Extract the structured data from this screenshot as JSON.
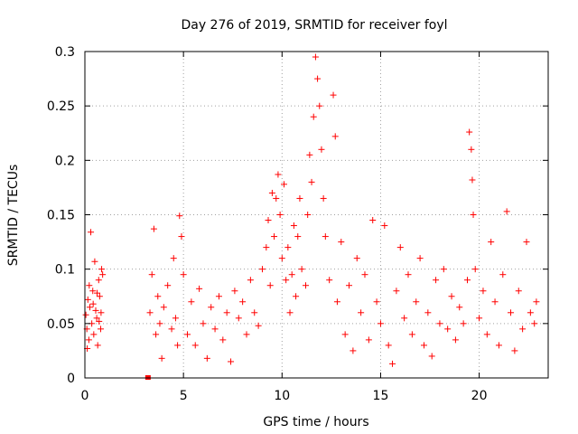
{
  "chart_data": {
    "type": "scatter",
    "title": "Day 276 of 2019, SRMTID for receiver foyl",
    "xlabel": "GPS time / hours",
    "ylabel": "SRMTID / TECUs",
    "xlim": [
      0,
      23.5
    ],
    "ylim": [
      0,
      0.3
    ],
    "xticks": [
      0,
      5,
      10,
      15,
      20
    ],
    "yticks": [
      0,
      0.05,
      0.1,
      0.15,
      0.2,
      0.25,
      0.3
    ],
    "xtick_labels": [
      "0",
      "5",
      "10",
      "15",
      "20"
    ],
    "ytick_labels": [
      "0",
      "0.05",
      "0.1",
      "0.15",
      "0.2",
      "0.25",
      "0.3"
    ],
    "grid": true,
    "marker": "+",
    "color": "#ff0000",
    "series": [
      {
        "name": "SRMTID",
        "description": "Dense scatter of SRMTID values; gap from about 0.9 to 3.1 hours. Points listed are representative samples read from the plot.",
        "points": [
          [
            0.05,
            0.058
          ],
          [
            0.1,
            0.045
          ],
          [
            0.15,
            0.072
          ],
          [
            0.2,
            0.035
          ],
          [
            0.25,
            0.065
          ],
          [
            0.3,
            0.134
          ],
          [
            0.35,
            0.05
          ],
          [
            0.4,
            0.08
          ],
          [
            0.45,
            0.04
          ],
          [
            0.5,
            0.107
          ],
          [
            0.55,
            0.062
          ],
          [
            0.6,
            0.055
          ],
          [
            0.65,
            0.03
          ],
          [
            0.7,
            0.09
          ],
          [
            0.75,
            0.075
          ],
          [
            0.8,
            0.045
          ],
          [
            0.85,
            0.1
          ],
          [
            0.9,
            0.095
          ],
          [
            0.12,
            0.027
          ],
          [
            0.22,
            0.085
          ],
          [
            0.42,
            0.068
          ],
          [
            0.62,
            0.078
          ],
          [
            0.72,
            0.052
          ],
          [
            0.82,
            0.06
          ],
          [
            3.2,
            0.0
          ],
          [
            3.3,
            0.06
          ],
          [
            3.4,
            0.095
          ],
          [
            3.5,
            0.137
          ],
          [
            3.6,
            0.04
          ],
          [
            3.7,
            0.075
          ],
          [
            3.8,
            0.05
          ],
          [
            3.9,
            0.018
          ],
          [
            4.0,
            0.065
          ],
          [
            4.2,
            0.085
          ],
          [
            4.4,
            0.045
          ],
          [
            4.5,
            0.11
          ],
          [
            4.6,
            0.055
          ],
          [
            4.7,
            0.03
          ],
          [
            4.8,
            0.149
          ],
          [
            4.9,
            0.13
          ],
          [
            5.0,
            0.095
          ],
          [
            5.2,
            0.04
          ],
          [
            5.4,
            0.07
          ],
          [
            5.6,
            0.03
          ],
          [
            5.8,
            0.082
          ],
          [
            6.0,
            0.05
          ],
          [
            6.2,
            0.018
          ],
          [
            6.4,
            0.065
          ],
          [
            6.6,
            0.045
          ],
          [
            6.8,
            0.075
          ],
          [
            7.0,
            0.035
          ],
          [
            7.2,
            0.06
          ],
          [
            7.4,
            0.015
          ],
          [
            7.6,
            0.08
          ],
          [
            7.8,
            0.055
          ],
          [
            8.0,
            0.07
          ],
          [
            8.2,
            0.04
          ],
          [
            8.4,
            0.09
          ],
          [
            8.6,
            0.06
          ],
          [
            8.8,
            0.048
          ],
          [
            9.0,
            0.1
          ],
          [
            9.2,
            0.12
          ],
          [
            9.3,
            0.145
          ],
          [
            9.4,
            0.085
          ],
          [
            9.5,
            0.17
          ],
          [
            9.6,
            0.13
          ],
          [
            9.7,
            0.165
          ],
          [
            9.8,
            0.187
          ],
          [
            9.9,
            0.15
          ],
          [
            10.0,
            0.11
          ],
          [
            10.1,
            0.178
          ],
          [
            10.2,
            0.09
          ],
          [
            10.3,
            0.12
          ],
          [
            10.4,
            0.06
          ],
          [
            10.5,
            0.095
          ],
          [
            10.6,
            0.14
          ],
          [
            10.7,
            0.075
          ],
          [
            10.8,
            0.13
          ],
          [
            10.9,
            0.165
          ],
          [
            11.0,
            0.1
          ],
          [
            11.2,
            0.085
          ],
          [
            11.3,
            0.15
          ],
          [
            11.4,
            0.205
          ],
          [
            11.5,
            0.18
          ],
          [
            11.6,
            0.24
          ],
          [
            11.7,
            0.295
          ],
          [
            11.8,
            0.275
          ],
          [
            11.9,
            0.25
          ],
          [
            12.0,
            0.21
          ],
          [
            12.1,
            0.165
          ],
          [
            12.2,
            0.13
          ],
          [
            12.4,
            0.09
          ],
          [
            12.6,
            0.26
          ],
          [
            12.7,
            0.222
          ],
          [
            12.8,
            0.07
          ],
          [
            13.0,
            0.125
          ],
          [
            13.2,
            0.04
          ],
          [
            13.4,
            0.085
          ],
          [
            13.6,
            0.025
          ],
          [
            13.8,
            0.11
          ],
          [
            14.0,
            0.06
          ],
          [
            14.2,
            0.095
          ],
          [
            14.4,
            0.035
          ],
          [
            14.6,
            0.145
          ],
          [
            14.8,
            0.07
          ],
          [
            15.0,
            0.05
          ],
          [
            15.2,
            0.14
          ],
          [
            15.4,
            0.03
          ],
          [
            15.6,
            0.013
          ],
          [
            15.8,
            0.08
          ],
          [
            16.0,
            0.12
          ],
          [
            16.2,
            0.055
          ],
          [
            16.4,
            0.095
          ],
          [
            16.6,
            0.04
          ],
          [
            16.8,
            0.07
          ],
          [
            17.0,
            0.11
          ],
          [
            17.2,
            0.03
          ],
          [
            17.4,
            0.06
          ],
          [
            17.6,
            0.02
          ],
          [
            17.8,
            0.09
          ],
          [
            18.0,
            0.05
          ],
          [
            18.2,
            0.1
          ],
          [
            18.4,
            0.045
          ],
          [
            18.6,
            0.075
          ],
          [
            18.8,
            0.035
          ],
          [
            19.0,
            0.065
          ],
          [
            19.2,
            0.05
          ],
          [
            19.4,
            0.09
          ],
          [
            19.5,
            0.226
          ],
          [
            19.6,
            0.21
          ],
          [
            19.65,
            0.182
          ],
          [
            19.7,
            0.15
          ],
          [
            19.8,
            0.1
          ],
          [
            20.0,
            0.055
          ],
          [
            20.2,
            0.08
          ],
          [
            20.4,
            0.04
          ],
          [
            20.6,
            0.125
          ],
          [
            20.8,
            0.07
          ],
          [
            21.0,
            0.03
          ],
          [
            21.2,
            0.095
          ],
          [
            21.4,
            0.153
          ],
          [
            21.6,
            0.06
          ],
          [
            21.8,
            0.025
          ],
          [
            22.0,
            0.08
          ],
          [
            22.2,
            0.045
          ],
          [
            22.4,
            0.125
          ],
          [
            22.6,
            0.06
          ],
          [
            22.8,
            0.05
          ],
          [
            22.9,
            0.07
          ]
        ]
      }
    ]
  }
}
